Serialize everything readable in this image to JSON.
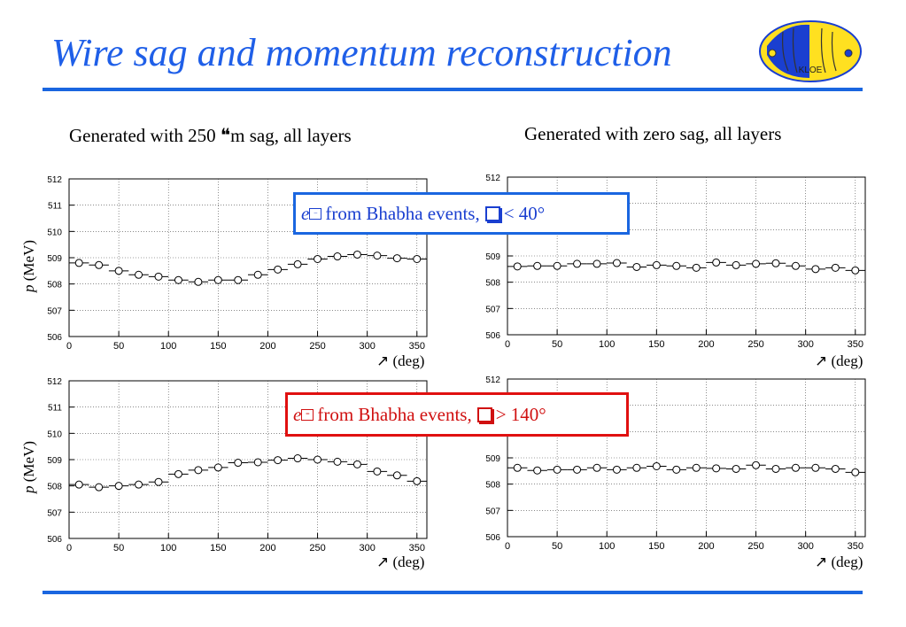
{
  "title": "Wire sag and momentum reconstruction",
  "captions": {
    "left": "Generated with 250 ❝m sag, all layers",
    "right": "Generated with zero sag, all layers"
  },
  "labels": {
    "ylabel_p": "p",
    "ylabel_unit": " (MeV)",
    "xlabel_sym": "↗",
    "xlabel_unit": " (deg)"
  },
  "boxes": {
    "blue": {
      "particle": "e",
      "text": " from Bhabha events, ",
      "cond": "< 40°"
    },
    "red": {
      "particle": "e",
      "text": " from Bhabha events, ",
      "cond": "> 140°"
    }
  },
  "colors": {
    "title": "#1f5fe8",
    "rule": "#1a66e0",
    "blue_box": "#1a66e0",
    "red_box": "#e01010"
  },
  "logo": {
    "text": "KLOE"
  },
  "chart_data": [
    {
      "type": "scatter",
      "ylabel": "p (MeV)",
      "xlabel": "↗ (deg)",
      "xlim": [
        0,
        360
      ],
      "ylim": [
        506,
        512
      ],
      "xticks": [
        0,
        50,
        100,
        150,
        200,
        250,
        300,
        350
      ],
      "yticks": [
        506,
        507,
        508,
        509,
        510,
        511,
        512
      ],
      "grid": true,
      "x": [
        10,
        30,
        50,
        70,
        90,
        110,
        130,
        150,
        170,
        190,
        210,
        230,
        250,
        270,
        290,
        310,
        330,
        350
      ],
      "y": [
        508.8,
        508.72,
        508.5,
        508.35,
        508.28,
        508.15,
        508.08,
        508.15,
        508.15,
        508.35,
        508.55,
        508.75,
        508.95,
        509.05,
        509.12,
        509.08,
        508.98,
        508.95
      ]
    },
    {
      "type": "scatter",
      "xlim": [
        0,
        360
      ],
      "ylim": [
        506,
        512
      ],
      "xticks": [
        0,
        50,
        100,
        150,
        200,
        250,
        300,
        350
      ],
      "yticks": [
        506,
        507,
        508,
        509,
        510,
        511,
        512
      ],
      "grid": true,
      "xlabel": "↗ (deg)",
      "x": [
        10,
        30,
        50,
        70,
        90,
        110,
        130,
        150,
        170,
        190,
        210,
        230,
        250,
        270,
        290,
        310,
        330,
        350
      ],
      "y": [
        508.6,
        508.62,
        508.62,
        508.7,
        508.7,
        508.73,
        508.58,
        508.65,
        508.62,
        508.55,
        508.75,
        508.65,
        508.7,
        508.72,
        508.62,
        508.5,
        508.55,
        508.45
      ]
    },
    {
      "type": "scatter",
      "ylabel": "p (MeV)",
      "xlabel": "↗ (deg)",
      "xlim": [
        0,
        360
      ],
      "ylim": [
        506,
        512
      ],
      "xticks": [
        0,
        50,
        100,
        150,
        200,
        250,
        300,
        350
      ],
      "yticks": [
        506,
        507,
        508,
        509,
        510,
        511,
        512
      ],
      "grid": true,
      "x": [
        10,
        30,
        50,
        70,
        90,
        110,
        130,
        150,
        170,
        190,
        210,
        230,
        250,
        270,
        290,
        310,
        330,
        350
      ],
      "y": [
        508.05,
        507.95,
        508.0,
        508.05,
        508.15,
        508.45,
        508.6,
        508.7,
        508.88,
        508.9,
        508.98,
        509.05,
        509.0,
        508.92,
        508.82,
        508.55,
        508.4,
        508.18
      ]
    },
    {
      "type": "scatter",
      "xlim": [
        0,
        360
      ],
      "ylim": [
        506,
        512
      ],
      "xticks": [
        0,
        50,
        100,
        150,
        200,
        250,
        300,
        350
      ],
      "yticks": [
        506,
        507,
        508,
        509,
        510,
        511,
        512
      ],
      "grid": true,
      "xlabel": "↗ (deg)",
      "x": [
        10,
        30,
        50,
        70,
        90,
        110,
        130,
        150,
        170,
        190,
        210,
        230,
        250,
        270,
        290,
        310,
        330,
        350
      ],
      "y": [
        508.62,
        508.52,
        508.55,
        508.55,
        508.62,
        508.55,
        508.62,
        508.68,
        508.55,
        508.62,
        508.6,
        508.58,
        508.72,
        508.58,
        508.62,
        508.62,
        508.58,
        508.45
      ]
    }
  ]
}
